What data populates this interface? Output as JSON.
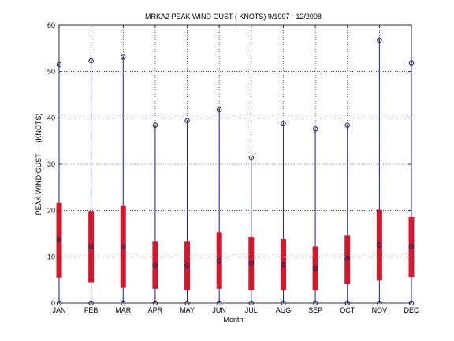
{
  "chart_data": {
    "type": "box",
    "title": "MRKA2  PEAK WIND GUST ( KNOTS) 9/1997 - 12/2008",
    "xlabel": "Month",
    "ylabel": "PEAK WIND GUST --- (KNOTS)",
    "ylim": [
      0,
      60
    ],
    "yticks": [
      0,
      10,
      20,
      30,
      40,
      50,
      60
    ],
    "grid": true,
    "categories": [
      "JAN",
      "FEB",
      "MAR",
      "APR",
      "MAY",
      "JUN",
      "JUL",
      "AUG",
      "SEP",
      "OCT",
      "NOV",
      "DEC"
    ],
    "min": [
      0,
      0,
      0,
      0,
      0,
      0,
      0,
      0,
      0,
      0,
      0,
      0
    ],
    "max": [
      51.5,
      52.3,
      53.1,
      38.4,
      39.4,
      41.8,
      31.4,
      38.8,
      37.6,
      38.4,
      56.8,
      51.9
    ],
    "q1": [
      5.5,
      4.5,
      3.3,
      3.1,
      2.7,
      3.1,
      2.7,
      2.7,
      2.7,
      4.1,
      4.9,
      5.6
    ],
    "q3": [
      21.7,
      19.9,
      21.0,
      13.4,
      13.4,
      15.3,
      14.3,
      13.8,
      12.2,
      14.6,
      20.2,
      18.6
    ],
    "median": [
      13.7,
      12.2,
      12.2,
      8.1,
      8.1,
      9.2,
      8.6,
      8.3,
      7.5,
      9.7,
      12.6,
      12.2
    ],
    "colors": {
      "whisker": "#1f1f9a",
      "box": "#cc1a2e",
      "marker": "#1a1a55",
      "grid": "#000000"
    }
  }
}
